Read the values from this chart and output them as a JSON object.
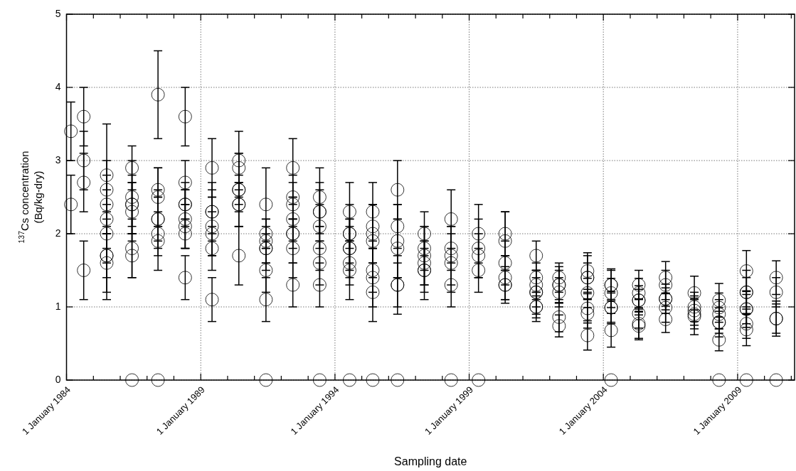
{
  "chart_data": {
    "type": "scatter",
    "xlabel": "Sampling date",
    "ylabel": "$^{137}$Cs concentration\n(Bq/kg-dry)",
    "marker": "circle",
    "grid": true,
    "xlim": [
      "1984-01-01",
      "2011-02-15"
    ],
    "xticks": [
      {
        "value": "1984-01-01",
        "label": "1 January 1984"
      },
      {
        "value": "1985-01-01",
        "label": null
      },
      {
        "value": "1986-01-01",
        "label": null
      },
      {
        "value": "1987-01-01",
        "label": null
      },
      {
        "value": "1988-01-01",
        "label": null
      },
      {
        "value": "1989-01-01",
        "label": "1 January 1989"
      },
      {
        "value": "1990-01-01",
        "label": null
      },
      {
        "value": "1991-01-01",
        "label": null
      },
      {
        "value": "1992-01-01",
        "label": null
      },
      {
        "value": "1993-01-01",
        "label": null
      },
      {
        "value": "1994-01-01",
        "label": "1 January 1994"
      },
      {
        "value": "1995-01-01",
        "label": null
      },
      {
        "value": "1996-01-01",
        "label": null
      },
      {
        "value": "1997-01-01",
        "label": null
      },
      {
        "value": "1998-01-01",
        "label": null
      },
      {
        "value": "1999-01-01",
        "label": "1 January 1999"
      },
      {
        "value": "2000-01-01",
        "label": null
      },
      {
        "value": "2001-01-01",
        "label": null
      },
      {
        "value": "2002-01-01",
        "label": null
      },
      {
        "value": "2003-01-01",
        "label": null
      },
      {
        "value": "2004-01-01",
        "label": "1 January 2004"
      },
      {
        "value": "2005-01-01",
        "label": null
      },
      {
        "value": "2006-01-01",
        "label": null
      },
      {
        "value": "2007-01-01",
        "label": null
      },
      {
        "value": "2008-01-01",
        "label": null
      },
      {
        "value": "2009-01-01",
        "label": "1 January 2009"
      },
      {
        "value": "2010-01-01",
        "label": null
      },
      {
        "value": "2011-01-01",
        "label": null
      }
    ],
    "ylim": [
      0,
      5
    ],
    "yticks": [
      0,
      1,
      2,
      3,
      4,
      5
    ],
    "series": [
      {
        "color": "#000000",
        "x": [
          "1984-03-01",
          "1984-03-01",
          "1984-08-22",
          "1984-08-22",
          "1984-08-22",
          "1984-08-22",
          "1985-07-01",
          "1985-07-01",
          "1985-07-01",
          "1985-07-01",
          "1985-07-01",
          "1985-07-01",
          "1985-07-01",
          "1985-07-01",
          "1986-06-10",
          "1986-06-10",
          "1986-06-10",
          "1986-06-10",
          "1986-06-10",
          "1986-06-10",
          "1986-06-10",
          "1986-06-10",
          "1987-05-30",
          "1987-05-30",
          "1987-05-30",
          "1987-05-30",
          "1987-05-30",
          "1987-05-30",
          "1987-05-30",
          "1987-05-30",
          "1988-06-03",
          "1988-06-03",
          "1988-06-03",
          "1988-06-03",
          "1988-06-03",
          "1988-06-03",
          "1988-06-03",
          "1988-06-03",
          "1989-06-03",
          "1989-06-03",
          "1989-06-03",
          "1989-06-03",
          "1989-06-03",
          "1989-06-03",
          "1989-06-03",
          "1990-06-03",
          "1990-06-03",
          "1990-06-03",
          "1990-06-03",
          "1990-06-03",
          "1990-06-03",
          "1990-06-03",
          "1991-06-07",
          "1991-06-07",
          "1991-06-07",
          "1991-06-07",
          "1991-06-07",
          "1991-06-07",
          "1991-06-07",
          "1991-06-07",
          "1992-06-07",
          "1992-06-07",
          "1992-06-07",
          "1992-06-07",
          "1992-06-07",
          "1992-06-07",
          "1992-06-07",
          "1992-06-07",
          "1993-06-07",
          "1993-06-07",
          "1993-06-07",
          "1993-06-07",
          "1993-06-07",
          "1993-06-07",
          "1993-06-07",
          "1993-06-07",
          "1994-07-19",
          "1994-07-19",
          "1994-07-19",
          "1994-07-19",
          "1994-07-19",
          "1994-07-19",
          "1994-07-19",
          "1994-07-19",
          "1995-05-30",
          "1995-05-30",
          "1995-05-30",
          "1995-05-30",
          "1995-05-30",
          "1995-05-30",
          "1995-05-30",
          "1995-05-30",
          "1996-05-01",
          "1996-05-01",
          "1996-05-01",
          "1996-05-01",
          "1996-05-01",
          "1996-05-01",
          "1996-05-01",
          "1997-05-01",
          "1997-05-01",
          "1997-05-01",
          "1997-05-01",
          "1997-05-01",
          "1997-05-01",
          "1998-05-01",
          "1998-05-01",
          "1998-05-01",
          "1998-05-01",
          "1998-05-01",
          "1998-05-01",
          "1999-05-08",
          "1999-05-08",
          "1999-05-08",
          "1999-05-08",
          "1999-05-08",
          "2000-05-05",
          "2000-05-05",
          "2000-05-05",
          "2000-05-05",
          "2000-05-05",
          "2000-05-05",
          "2001-07-01",
          "2001-07-01",
          "2001-07-01",
          "2001-07-01",
          "2001-07-01",
          "2001-07-01",
          "2001-07-01",
          "2002-05-08",
          "2002-05-08",
          "2002-05-08",
          "2002-05-08",
          "2002-05-08",
          "2002-05-08",
          "2003-05-30",
          "2003-05-30",
          "2003-05-30",
          "2003-05-30",
          "2003-05-30",
          "2003-05-30",
          "2003-05-30",
          "2004-04-16",
          "2004-04-16",
          "2004-04-16",
          "2004-04-16",
          "2004-04-16",
          "2004-04-16",
          "2004-04-16",
          "2005-04-27",
          "2005-04-27",
          "2005-04-27",
          "2005-04-27",
          "2005-04-27",
          "2005-04-27",
          "2005-04-27",
          "2006-04-27",
          "2006-04-27",
          "2006-04-27",
          "2006-04-27",
          "2006-04-27",
          "2006-04-27",
          "2007-05-23",
          "2007-05-23",
          "2007-05-23",
          "2007-05-23",
          "2007-05-23",
          "2008-04-23",
          "2008-04-23",
          "2008-04-23",
          "2008-04-23",
          "2008-04-23",
          "2008-04-23",
          "2008-04-23",
          "2009-05-01",
          "2009-05-01",
          "2009-05-01",
          "2009-05-01",
          "2009-05-01",
          "2009-05-01",
          "2009-05-01",
          "2009-05-01",
          "2010-06-10",
          "2010-06-10",
          "2010-06-10",
          "2010-06-10",
          "2010-06-10"
        ],
        "values": [
          3.4,
          2.4,
          3.6,
          3.0,
          2.7,
          1.5,
          2.8,
          2.6,
          2.4,
          2.2,
          2.0,
          1.7,
          1.7,
          1.6,
          2.9,
          2.5,
          2.4,
          2.4,
          2.3,
          1.8,
          1.7,
          0,
          3.9,
          2.6,
          2.5,
          2.2,
          2.2,
          2.0,
          1.9,
          0,
          3.6,
          2.7,
          2.4,
          2.4,
          2.2,
          2.1,
          2.0,
          1.4,
          2.9,
          2.3,
          2.3,
          2.1,
          2.0,
          1.8,
          1.1,
          3.0,
          2.9,
          2.6,
          2.6,
          2.4,
          2.4,
          1.7,
          2.4,
          2.0,
          1.9,
          1.8,
          1.8,
          1.5,
          1.1,
          0,
          2.9,
          2.5,
          2.4,
          2.2,
          2.0,
          2.0,
          1.8,
          1.3,
          2.5,
          2.3,
          2.3,
          2.1,
          1.8,
          1.6,
          1.3,
          0,
          2.3,
          2.0,
          2.0,
          1.8,
          1.8,
          1.6,
          1.5,
          0,
          2.3,
          2.1,
          2.0,
          1.9,
          1.5,
          1.4,
          1.2,
          0,
          2.6,
          2.1,
          1.9,
          1.8,
          1.3,
          1.3,
          0,
          2.0,
          1.8,
          1.7,
          1.6,
          1.5,
          1.5,
          2.2,
          1.8,
          1.7,
          1.6,
          1.3,
          0,
          2.0,
          1.8,
          1.7,
          1.5,
          0,
          2.0,
          1.9,
          1.6,
          1.4,
          1.3,
          1.3,
          1.7,
          1.4,
          1.3,
          1.2,
          1.2,
          1.0,
          1.0,
          1.4,
          1.3,
          1.3,
          1.2,
          0.86,
          0.74,
          1.49,
          1.4,
          1.4,
          1.19,
          0.98,
          0.91,
          0.61,
          1.3,
          1.3,
          1.19,
          0.99,
          0.99,
          0.68,
          0,
          1.3,
          1.19,
          1.09,
          1.09,
          0.91,
          0.77,
          0.74,
          1.4,
          1.3,
          1.11,
          1.11,
          0.99,
          0.83,
          1.19,
          1.0,
          0.95,
          0.9,
          0.87,
          1.09,
          0.99,
          0.9,
          0.79,
          0.79,
          0.55,
          0,
          1.49,
          1.2,
          1.2,
          0.97,
          0.97,
          0.77,
          0.69,
          0,
          1.4,
          1.2,
          0.84,
          0.84,
          0
        ],
        "errors": [
          0.4,
          0.4,
          0.4,
          0.4,
          0.4,
          0.4,
          0.7,
          0.4,
          0.4,
          0.4,
          0.4,
          0.6,
          0.3,
          0.4,
          0.3,
          0.5,
          0.4,
          0.3,
          0.4,
          0.4,
          0.3,
          null,
          0.6,
          0.3,
          0.4,
          0.3,
          0.4,
          0.5,
          0.2,
          null,
          0.4,
          0.3,
          0.3,
          0.2,
          0.4,
          0.3,
          0.2,
          0.3,
          0.4,
          0.4,
          0.3,
          0.4,
          0.3,
          0.3,
          0.3,
          0.4,
          0.2,
          0.5,
          0.2,
          0.3,
          0.1,
          0.4,
          0.5,
          0.2,
          0.3,
          0.3,
          0.2,
          0.3,
          0.3,
          null,
          0.4,
          0.3,
          0.3,
          0.3,
          0.2,
          0.4,
          0.4,
          0.3,
          0.4,
          0.4,
          0.3,
          0.3,
          0.3,
          0.3,
          0.3,
          null,
          0.4,
          0.4,
          0.2,
          0.4,
          0.3,
          0.3,
          0.4,
          null,
          0.4,
          0.3,
          0.4,
          0.5,
          0.3,
          0.4,
          0.4,
          null,
          0.4,
          0.3,
          0.5,
          0.4,
          0.4,
          0.3,
          null,
          0.3,
          0.3,
          0.4,
          0.3,
          0.4,
          0.3,
          0.4,
          0.3,
          0.4,
          0.4,
          0.3,
          null,
          0.4,
          0.4,
          0.3,
          0.3,
          null,
          0.3,
          0.4,
          0.3,
          0.3,
          0.2,
          0.25,
          0.2,
          0.2,
          0.2,
          0.3,
          0.2,
          0.15,
          0.2,
          0.2,
          0.25,
          0.2,
          0.2,
          0.2,
          0.15,
          0.25,
          0.3,
          0.2,
          0.2,
          0.2,
          0.2,
          0.2,
          0.22,
          0.2,
          0.2,
          0.22,
          0.2,
          0.23,
          null,
          0.2,
          0.2,
          0.2,
          0.15,
          0.2,
          0.2,
          0.19,
          0.22,
          0.2,
          0.2,
          0.15,
          0.2,
          0.18,
          0.23,
          0.2,
          0.2,
          0.2,
          0.25,
          0.23,
          0.2,
          0.2,
          0.2,
          0.15,
          0.15,
          null,
          0.28,
          0.2,
          0.3,
          0.2,
          0.25,
          0.2,
          0.22,
          null,
          0.23,
          0.2,
          0.24,
          0.2,
          null
        ]
      }
    ]
  }
}
